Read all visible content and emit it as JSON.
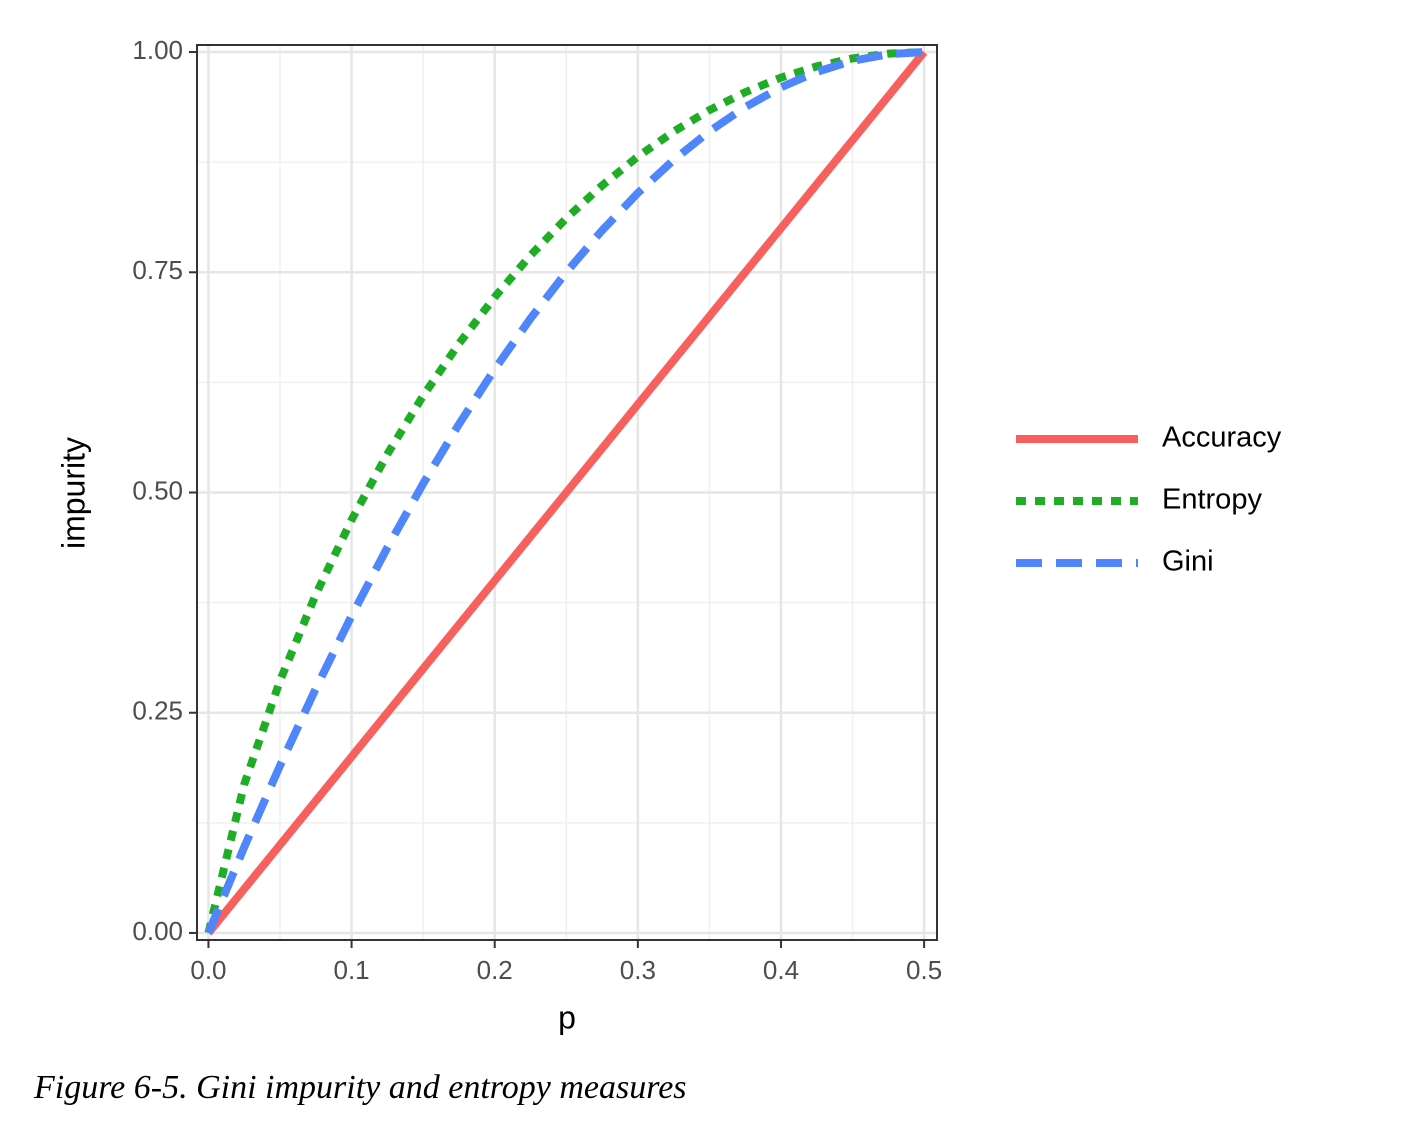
{
  "chart_data": {
    "type": "line",
    "x_label": "p",
    "y_label": "impurity",
    "caption": "Figure 6-5. Gini impurity and entropy measures",
    "x": [
      0,
      0.025,
      0.05,
      0.075,
      0.1,
      0.125,
      0.15,
      0.175,
      0.2,
      0.225,
      0.25,
      0.275,
      0.3,
      0.325,
      0.35,
      0.375,
      0.4,
      0.425,
      0.45,
      0.475,
      0.5
    ],
    "series": [
      {
        "name": "Accuracy",
        "color": "#f8605d",
        "dash": "solid",
        "values": [
          0,
          0.05,
          0.1,
          0.15,
          0.2,
          0.25,
          0.3,
          0.35,
          0.4,
          0.45,
          0.5,
          0.55,
          0.6,
          0.65,
          0.7,
          0.75,
          0.8,
          0.85,
          0.9,
          0.95,
          1
        ]
      },
      {
        "name": "Entropy",
        "color": "#1fad25",
        "dash": "dotted",
        "values": [
          0,
          0.1687,
          0.2864,
          0.3843,
          0.469,
          0.5436,
          0.6098,
          0.669,
          0.7219,
          0.7692,
          0.8113,
          0.8485,
          0.8813,
          0.9097,
          0.9341,
          0.9544,
          0.971,
          0.9837,
          0.9928,
          0.9982,
          1
        ]
      },
      {
        "name": "Gini",
        "color": "#5086fb",
        "dash": "dashed",
        "values": [
          0,
          0.0975,
          0.19,
          0.2775,
          0.36,
          0.4375,
          0.51,
          0.5775,
          0.64,
          0.6975,
          0.75,
          0.7975,
          0.84,
          0.8775,
          0.91,
          0.9375,
          0.96,
          0.9775,
          0.99,
          0.9975,
          1
        ]
      }
    ],
    "xlim": [
      -0.008,
      0.509
    ],
    "ylim": [
      -0.008,
      1.008
    ],
    "xticks": [
      {
        "value": 0,
        "label": "0.0"
      },
      0.1,
      0.2,
      0.3,
      0.4,
      0.5
    ],
    "yticks": [
      {
        "value": 0,
        "label": "0.00"
      },
      0.25,
      {
        "value": 0.5,
        "label": "0.50"
      },
      0.75,
      {
        "value": 1,
        "label": "1.00"
      }
    ],
    "grid": true,
    "legend": "right"
  }
}
